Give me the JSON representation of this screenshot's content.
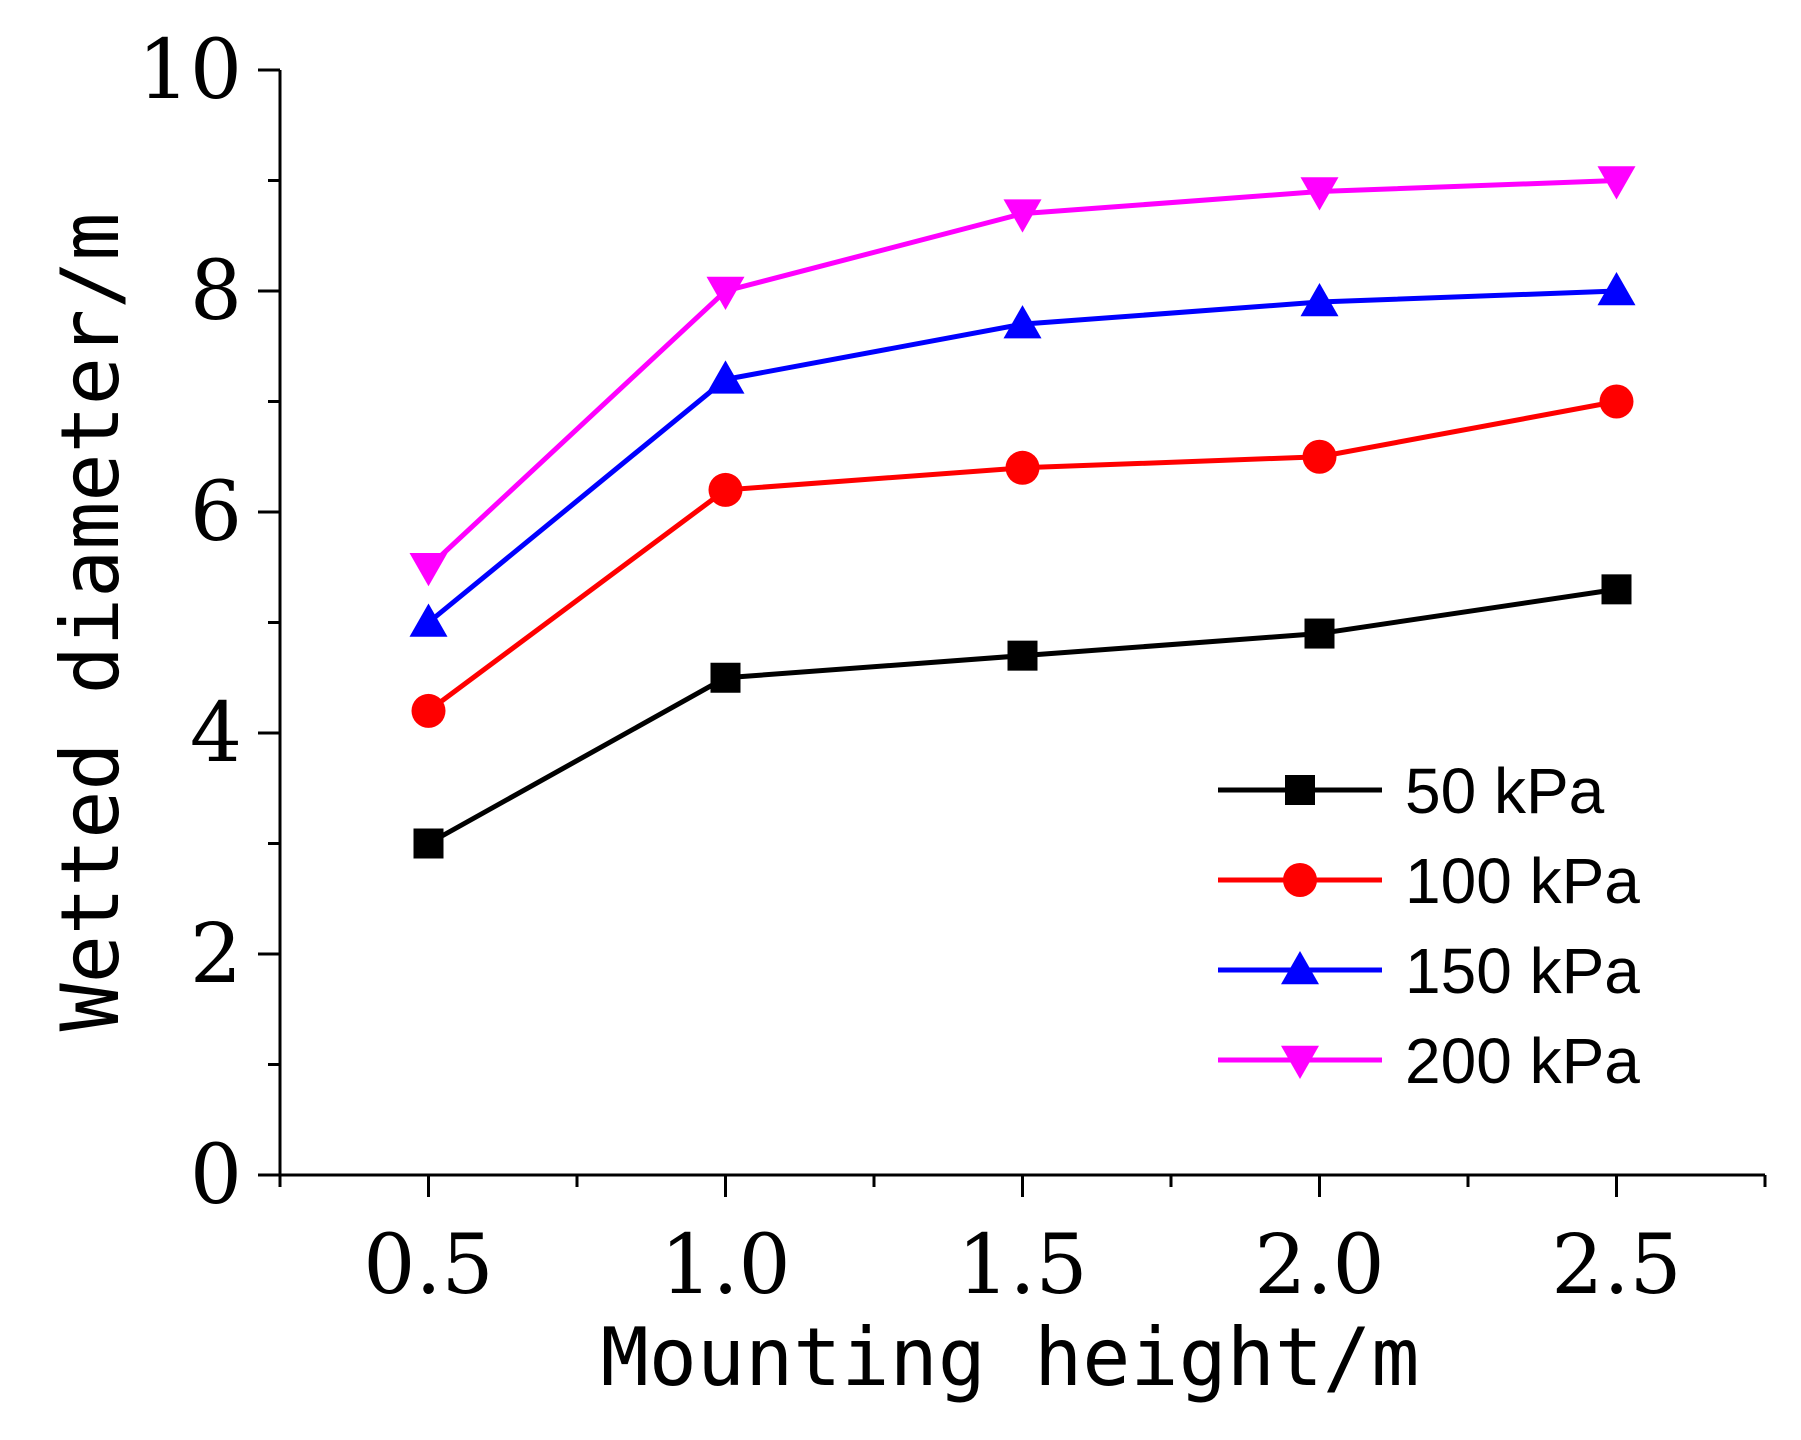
{
  "chart_data": {
    "type": "line",
    "title": "",
    "xlabel": "Mounting height/m",
    "ylabel": "Wetted diameter/m",
    "x": [
      0.5,
      1.0,
      1.5,
      2.0,
      2.5
    ],
    "x_tick_labels": [
      "0.5",
      "1.0",
      "1.5",
      "2.0",
      "2.5"
    ],
    "y_tick_labels": [
      "0",
      "2",
      "4",
      "6",
      "8",
      "10"
    ],
    "xlim": [
      0.25,
      2.75
    ],
    "ylim": [
      0,
      10
    ],
    "grid": false,
    "legend_position": "bottom-right",
    "series": [
      {
        "name": "50 kPa",
        "color": "#000000",
        "marker": "square",
        "values": [
          3.0,
          4.5,
          4.7,
          4.9,
          5.3
        ]
      },
      {
        "name": "100 kPa",
        "color": "#ff0000",
        "marker": "circle",
        "values": [
          4.2,
          6.2,
          6.4,
          6.5,
          7.0
        ]
      },
      {
        "name": "150 kPa",
        "color": "#0000ff",
        "marker": "triangle-up",
        "values": [
          5.0,
          7.2,
          7.7,
          7.9,
          8.0
        ]
      },
      {
        "name": "200 kPa",
        "color": "#ff00ff",
        "marker": "triangle-down",
        "values": [
          5.5,
          8.0,
          8.7,
          8.9,
          9.0
        ]
      }
    ]
  }
}
